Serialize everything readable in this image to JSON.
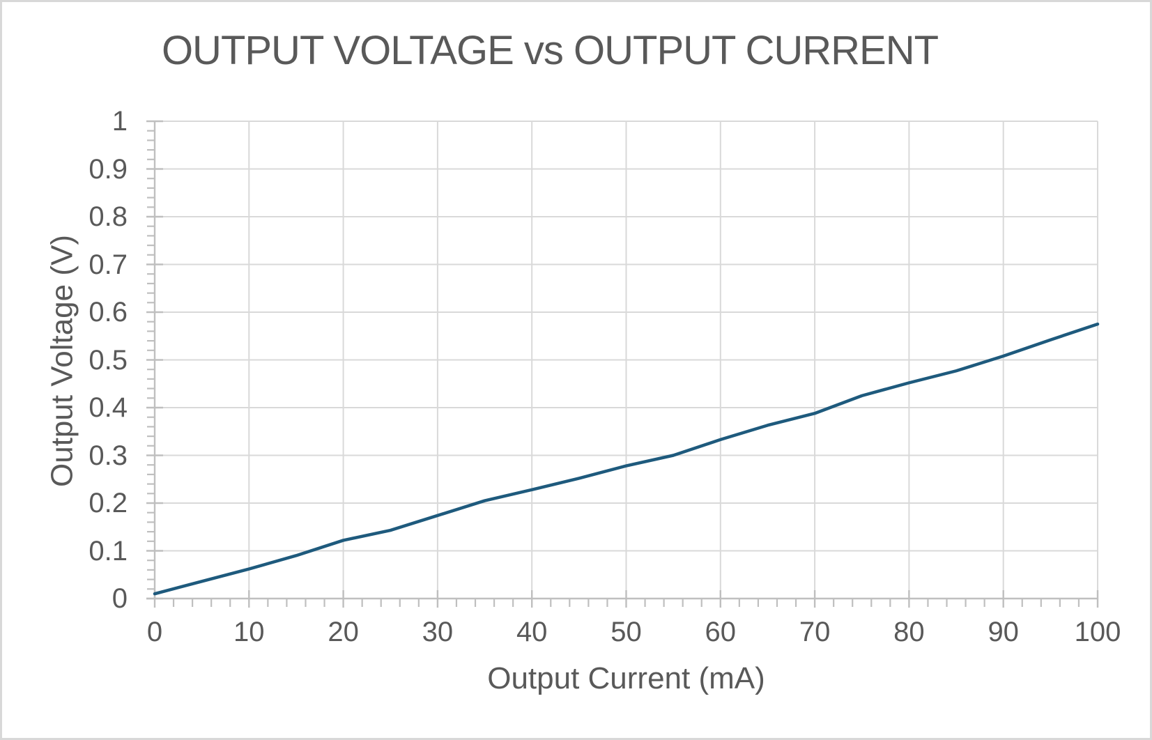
{
  "frame": {
    "background": "#ffffff",
    "border_color": "#d8d8d8"
  },
  "chart_data": {
    "type": "line",
    "title": "OUTPUT VOLTAGE vs OUTPUT CURRENT",
    "xlabel": "Output Current (mA)",
    "ylabel": "Output Voltage (V)",
    "xlim": [
      0,
      100
    ],
    "ylim": [
      0,
      1
    ],
    "x_tick_labels": [
      "0",
      "10",
      "20",
      "30",
      "40",
      "50",
      "60",
      "70",
      "80",
      "90",
      "100"
    ],
    "y_tick_labels": [
      "0",
      "0.1",
      "0.2",
      "0.3",
      "0.4",
      "0.5",
      "0.6",
      "0.7",
      "0.8",
      "0.9",
      "1"
    ],
    "x_major_step": 10,
    "y_major_step": 0.1,
    "x_minor_step": 2,
    "y_minor_step": 0.02,
    "grid": true,
    "legend_position": "none",
    "colors": {
      "text": "#595959",
      "grid": "#d9d9d9",
      "axis": "#bfbfbf"
    },
    "series": [
      {
        "name": "Output Voltage",
        "color": "#1e5a7d",
        "line_width": 4.5,
        "x": [
          0,
          5,
          10,
          15,
          20,
          25,
          30,
          35,
          40,
          45,
          50,
          55,
          60,
          65,
          70,
          75,
          80,
          85,
          90,
          95,
          100
        ],
        "y": [
          0.01,
          0.036,
          0.062,
          0.09,
          0.122,
          0.143,
          0.174,
          0.205,
          0.228,
          0.252,
          0.278,
          0.3,
          0.333,
          0.363,
          0.388,
          0.425,
          0.452,
          0.477,
          0.508,
          0.542,
          0.575
        ]
      }
    ]
  }
}
